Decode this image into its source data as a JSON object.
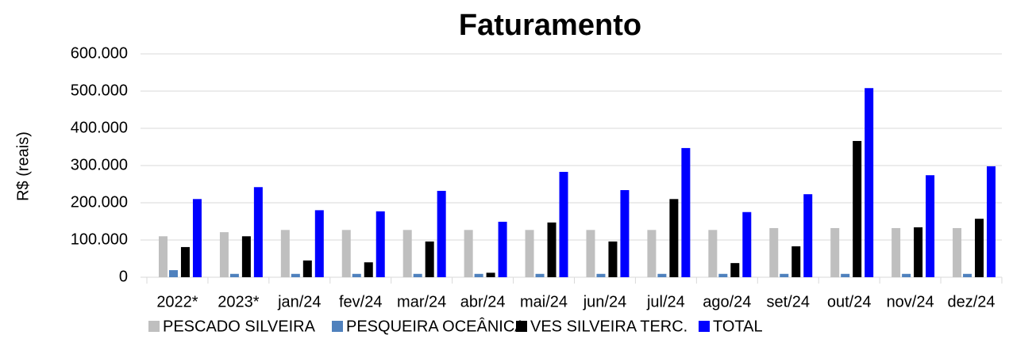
{
  "chart_data": {
    "type": "bar",
    "title": "Faturamento",
    "y_label": "R$ (reais)",
    "categories": [
      "2022*",
      "2023*",
      "jan/24",
      "fev/24",
      "mar/24",
      "abr/24",
      "mai/24",
      "jun/24",
      "jul/24",
      "ago/24",
      "set/24",
      "out/24",
      "nov/24",
      "dez/24"
    ],
    "series": [
      {
        "name": "PESCADO SILVEIRA",
        "color": "#bfbfbf",
        "values": [
          110000,
          121000,
          127000,
          127000,
          127000,
          127000,
          127000,
          127000,
          127000,
          127000,
          132000,
          132000,
          132000,
          132000
        ]
      },
      {
        "name": "PESQUEIRA OCEÂNICA",
        "color": "#4f81bd",
        "values": [
          19000,
          9000,
          9000,
          9000,
          9000,
          9000,
          9000,
          9000,
          9000,
          9000,
          9000,
          9000,
          9000,
          9000
        ]
      },
      {
        "name": "VES SILVEIRA TERC.",
        "color": "#000000",
        "values": [
          81000,
          110000,
          45000,
          40000,
          96000,
          12000,
          147000,
          96000,
          210000,
          38000,
          83000,
          366000,
          134000,
          157000
        ]
      },
      {
        "name": "TOTAL",
        "color": "#0000ff",
        "values": [
          210000,
          242000,
          180000,
          177000,
          232000,
          149000,
          283000,
          234000,
          347000,
          175000,
          223000,
          508000,
          274000,
          298000
        ]
      }
    ],
    "ylim": [
      0,
      600000
    ],
    "yticks": [
      0,
      {
        "value": 100000,
        "label": "100.000"
      },
      {
        "value": 200000,
        "label": "200.000"
      },
      {
        "value": 300000,
        "label": "300.000"
      },
      {
        "value": 400000,
        "label": "400.000"
      },
      {
        "value": 500000,
        "label": "500.000"
      },
      {
        "value": 600000,
        "label": "600.000"
      }
    ],
    "grid": true,
    "legend": "bottom"
  }
}
